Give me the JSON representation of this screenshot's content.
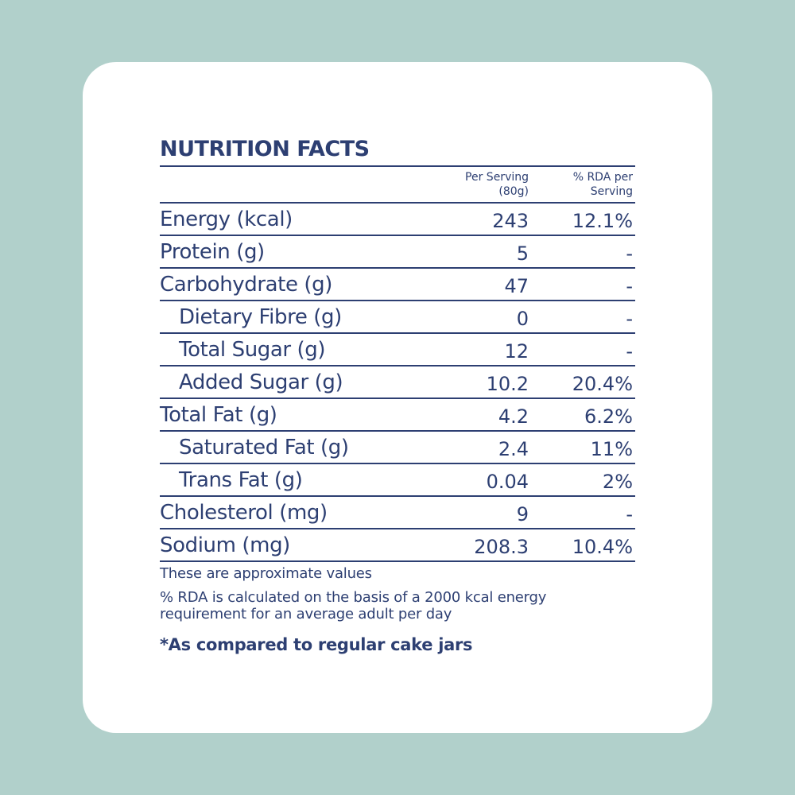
{
  "label": {
    "title": "NUTRITION FACTS",
    "header": {
      "per_serving": "Per Serving\n(80g)",
      "rda": "% RDA per\nServing"
    },
    "rows": [
      {
        "name": "Energy (kcal)",
        "per_serving": "243",
        "rda": "12.1%",
        "indent": false
      },
      {
        "name": "Protein (g)",
        "per_serving": "5",
        "rda": "-",
        "indent": false
      },
      {
        "name": "Carbohydrate (g)",
        "per_serving": "47",
        "rda": "-",
        "indent": false
      },
      {
        "name": "Dietary Fibre (g)",
        "per_serving": "0",
        "rda": "-",
        "indent": true
      },
      {
        "name": "Total Sugar (g)",
        "per_serving": "12",
        "rda": "-",
        "indent": true
      },
      {
        "name": "Added Sugar (g)",
        "per_serving": "10.2",
        "rda": "20.4%",
        "indent": true
      },
      {
        "name": "Total Fat (g)",
        "per_serving": "4.2",
        "rda": "6.2%",
        "indent": false
      },
      {
        "name": "Saturated Fat (g)",
        "per_serving": "2.4",
        "rda": "11%",
        "indent": true
      },
      {
        "name": "Trans Fat (g)",
        "per_serving": "0.04",
        "rda": "2%",
        "indent": true
      },
      {
        "name": "Cholesterol (mg)",
        "per_serving": "9",
        "rda": "-",
        "indent": false
      },
      {
        "name": "Sodium (mg)",
        "per_serving": "208.3",
        "rda": "10.4%",
        "indent": false
      }
    ],
    "notes": {
      "approximate": "These are approximate values",
      "rda_basis": "%  RDA is calculated on the basis of a 2000 kcal energy\nrequirement for an average adult per day",
      "comparison": "*As compared to regular cake jars"
    }
  },
  "colors": {
    "background": "#b1d0cb",
    "card": "#ffffff",
    "text": "#2d3f72"
  }
}
